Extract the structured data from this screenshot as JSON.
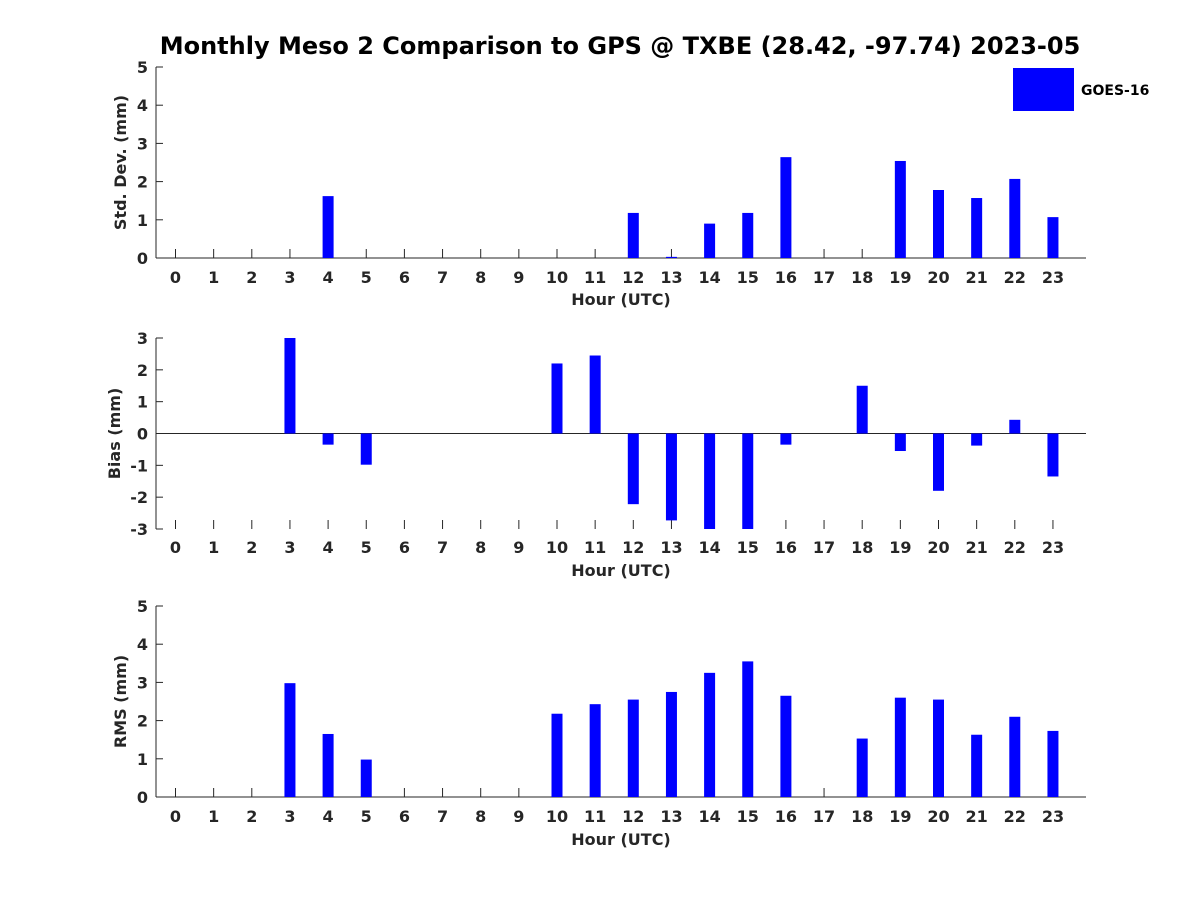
{
  "title": "Monthly Meso 2 Comparison to GPS @ TXBE (28.42, -97.74) 2023-05",
  "colors": {
    "bar": "#0000ff",
    "axis": "#262626",
    "background": "#ffffff"
  },
  "legend": {
    "label": "GOES-16",
    "position": "top-right"
  },
  "chart_data": [
    {
      "type": "bar",
      "title": "Monthly Meso 2 Comparison to GPS @ TXBE (28.42, -97.74) 2023-05",
      "xlabel": "Hour (UTC)",
      "ylabel": "Std. Dev. (mm)",
      "ylim": [
        0,
        5
      ],
      "yticks": [
        "0",
        "1",
        "2",
        "3",
        "4",
        "5"
      ],
      "xticks": [
        "0",
        "1",
        "2",
        "3",
        "4",
        "5",
        "6",
        "7",
        "8",
        "9",
        "10",
        "11",
        "12",
        "13",
        "14",
        "15",
        "16",
        "17",
        "18",
        "19",
        "20",
        "21",
        "22",
        "23"
      ],
      "series": [
        {
          "name": "GOES-16",
          "values": [
            null,
            null,
            null,
            null,
            1.62,
            null,
            null,
            null,
            null,
            null,
            null,
            null,
            1.18,
            0.03,
            0.9,
            1.18,
            2.64,
            null,
            null,
            2.54,
            1.78,
            1.57,
            2.07,
            1.07
          ]
        }
      ],
      "grid": false
    },
    {
      "type": "bar",
      "xlabel": "Hour (UTC)",
      "ylabel": "Bias (mm)",
      "ylim": [
        -3,
        3
      ],
      "yticks": [
        "-3",
        "-2",
        "-1",
        "0",
        "1",
        "2",
        "3"
      ],
      "xticks": [
        "0",
        "1",
        "2",
        "3",
        "4",
        "5",
        "6",
        "7",
        "8",
        "9",
        "10",
        "11",
        "12",
        "13",
        "14",
        "15",
        "16",
        "17",
        "18",
        "19",
        "20",
        "21",
        "22",
        "23"
      ],
      "series": [
        {
          "name": "GOES-16",
          "values": [
            null,
            null,
            null,
            3.0,
            -0.35,
            -0.98,
            null,
            null,
            null,
            null,
            2.2,
            2.45,
            -2.22,
            -2.73,
            -3.0,
            -3.0,
            -0.35,
            null,
            1.5,
            -0.55,
            -1.8,
            -0.38,
            0.43,
            -1.35
          ]
        }
      ],
      "grid": false
    },
    {
      "type": "bar",
      "xlabel": "Hour (UTC)",
      "ylabel": "RMS (mm)",
      "ylim": [
        0,
        5
      ],
      "yticks": [
        "0",
        "1",
        "2",
        "3",
        "4",
        "5"
      ],
      "xticks": [
        "0",
        "1",
        "2",
        "3",
        "4",
        "5",
        "6",
        "7",
        "8",
        "9",
        "10",
        "11",
        "12",
        "13",
        "14",
        "15",
        "16",
        "17",
        "18",
        "19",
        "20",
        "21",
        "22",
        "23"
      ],
      "series": [
        {
          "name": "GOES-16",
          "values": [
            null,
            null,
            null,
            2.98,
            1.65,
            0.98,
            null,
            null,
            null,
            null,
            2.18,
            2.43,
            2.55,
            2.75,
            3.25,
            3.55,
            2.65,
            null,
            1.53,
            2.6,
            2.55,
            1.63,
            2.1,
            1.73
          ]
        }
      ],
      "grid": false
    }
  ]
}
